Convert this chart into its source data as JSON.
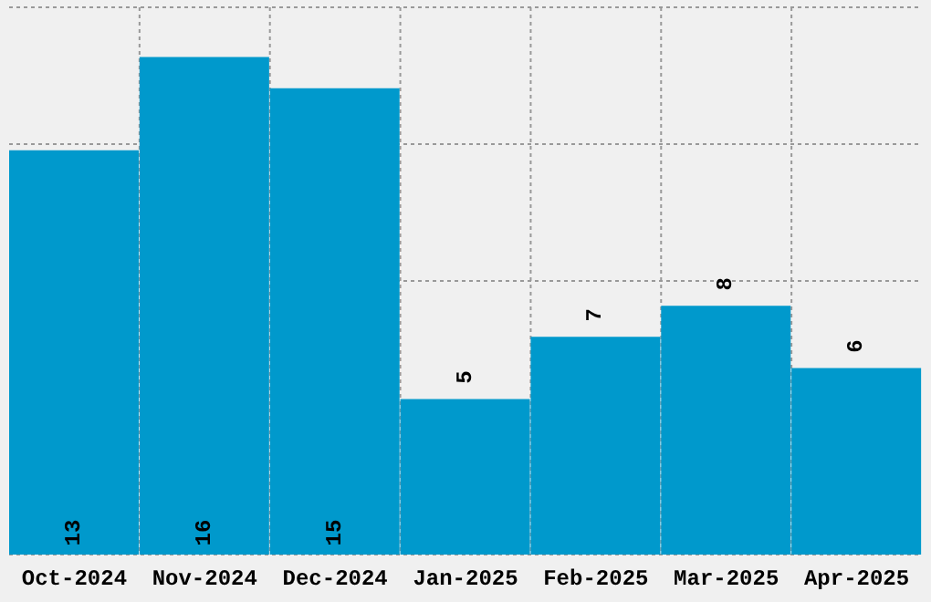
{
  "chart_data": {
    "type": "bar",
    "categories": [
      "Oct-2024",
      "Nov-2024",
      "Dec-2024",
      "Jan-2025",
      "Feb-2025",
      "Mar-2025",
      "Apr-2025"
    ],
    "values": [
      13,
      16,
      15,
      5,
      7,
      8,
      6
    ],
    "color": "#0099cc",
    "ylim": [
      0,
      17.6
    ],
    "yticks": [
      {
        "value": 0,
        "label": null
      },
      {
        "value": 4.4,
        "label": null
      },
      {
        "value": 8.8,
        "label": null
      },
      {
        "value": 13.2,
        "label": null
      },
      {
        "value": 17.6,
        "label": null
      }
    ],
    "tick_labels": "x",
    "grid": true,
    "data_labels": true
  }
}
